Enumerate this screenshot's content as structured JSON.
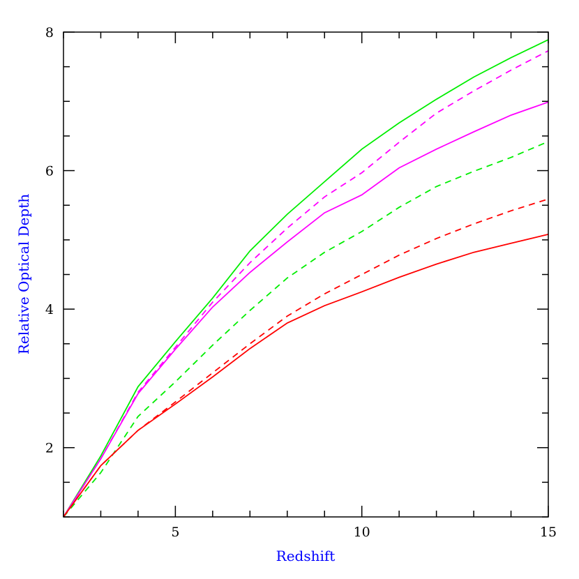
{
  "chart_data": {
    "type": "line",
    "title": "",
    "xlabel": "Redshift",
    "ylabel": "Relative Optical Depth",
    "xlim": [
      2,
      15
    ],
    "ylim": [
      1,
      8
    ],
    "x_ticks": [
      5,
      10,
      15
    ],
    "y_ticks": [
      2,
      4,
      6,
      8
    ],
    "x_tick_labels": [
      "5",
      "10",
      "15"
    ],
    "y_tick_labels": [
      "2",
      "4",
      "6",
      "8"
    ],
    "x_minor_step": 1,
    "y_minor_step": 0.5,
    "grid": false,
    "legend": "none",
    "axis_label_color": "#0000ff",
    "x": [
      2,
      3,
      4,
      5,
      6,
      7,
      8,
      9,
      10,
      11,
      12,
      13,
      14,
      15
    ],
    "series": [
      {
        "color": "#00ee00",
        "dash": "solid",
        "values": [
          1,
          1.88,
          2.88,
          3.53,
          4.16,
          4.84,
          5.37,
          5.84,
          6.31,
          6.69,
          7.03,
          7.35,
          7.63,
          7.89
        ]
      },
      {
        "color": "#ff00ff",
        "dash": "dashed",
        "values": [
          1,
          1.84,
          2.8,
          3.45,
          4.1,
          4.67,
          5.17,
          5.62,
          5.97,
          6.41,
          6.83,
          7.15,
          7.45,
          7.73
        ]
      },
      {
        "color": "#ff00ff",
        "dash": "solid",
        "values": [
          1,
          1.84,
          2.78,
          3.42,
          4.03,
          4.53,
          4.97,
          5.39,
          5.65,
          6.04,
          6.31,
          6.56,
          6.8,
          6.99
        ]
      },
      {
        "color": "#00ee00",
        "dash": "dashed",
        "values": [
          1,
          1.64,
          2.45,
          2.95,
          3.48,
          3.98,
          4.45,
          4.82,
          5.12,
          5.47,
          5.77,
          5.99,
          6.19,
          6.42
        ]
      },
      {
        "color": "#ff0000",
        "dash": "dashed",
        "values": [
          1,
          1.74,
          2.25,
          2.66,
          3.08,
          3.5,
          3.9,
          4.22,
          4.5,
          4.78,
          5.02,
          5.23,
          5.42,
          5.59
        ]
      },
      {
        "color": "#ff0000",
        "dash": "solid",
        "values": [
          1,
          1.74,
          2.25,
          2.63,
          3.02,
          3.43,
          3.8,
          4.05,
          4.25,
          4.46,
          4.65,
          4.82,
          4.95,
          5.08
        ]
      }
    ]
  }
}
